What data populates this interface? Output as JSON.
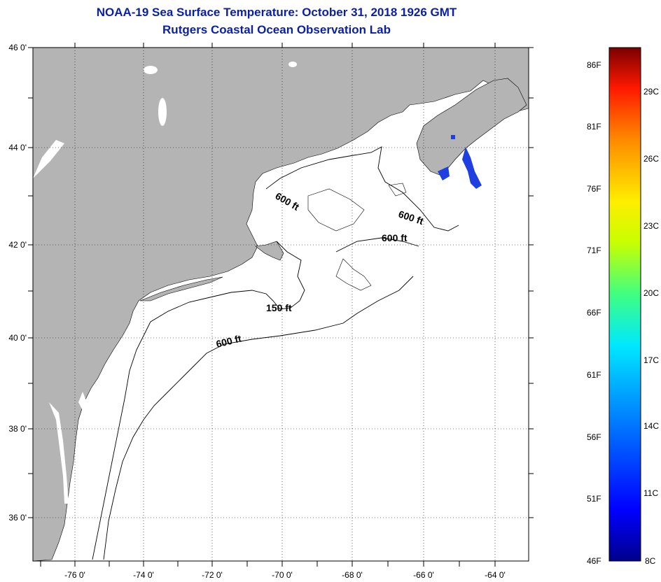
{
  "header": {
    "title": "NOAA-19 Sea Surface Temperature:  October 31, 2018 1926 GMT",
    "subtitle": "Rutgers Coastal Ocean Observation Lab"
  },
  "map": {
    "lat_labels": [
      "46 0'",
      "44 0'",
      "42 0'",
      "40 0'",
      "38 0'",
      "36 0'"
    ],
    "lon_labels": [
      "-76 0'",
      "-74 0'",
      "-72 0'",
      "-70 0'",
      "-68 0'",
      "-66 0'",
      "-64 0'"
    ],
    "contour_labels": [
      "600 ft",
      "600 ft",
      "600 ft",
      "150 ft",
      "600 ft"
    ],
    "colors": {
      "land": "#b4b4b4",
      "water": "#ffffff",
      "sst_patch": "#1f3fe0",
      "grid": "#000000"
    }
  },
  "colorbar": {
    "fahrenheit_labels": [
      "86F",
      "81F",
      "76F",
      "71F",
      "66F",
      "61F",
      "56F",
      "51F",
      "46F"
    ],
    "celsius_labels": [
      "29C",
      "26C",
      "23C",
      "20C",
      "17C",
      "14C",
      "11C",
      "8C"
    ]
  }
}
